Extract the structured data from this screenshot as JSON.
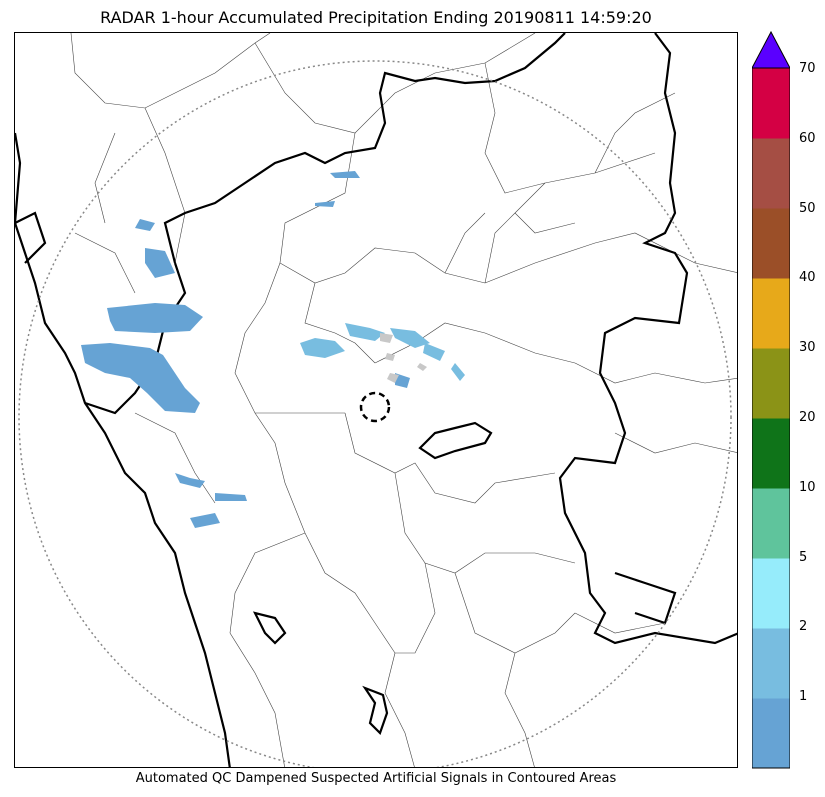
{
  "title": "RADAR 1-hour Accumulated Precipitation Ending 20190811 14:59:20",
  "footer": "Automated QC Dampened Suspected Artificial Signals in Contoured Areas",
  "colorbar": {
    "labels": [
      "1",
      "2",
      "5",
      "10",
      "20",
      "30",
      "40",
      "50",
      "60",
      "70"
    ],
    "colors": [
      "#66a3d4",
      "#78bde0",
      "#96ecfb",
      "#5fc49c",
      "#0f7419",
      "#8b9317",
      "#e7a91a",
      "#9b4f28",
      "#a54e44",
      "#d40044"
    ],
    "extend_color": "#5a00ff"
  },
  "map": {
    "range_ring_color": "#888888",
    "precip_color": "#66a3d4",
    "light_precip_color": "#78bde0",
    "suspect_color": "#c8c8c8"
  }
}
